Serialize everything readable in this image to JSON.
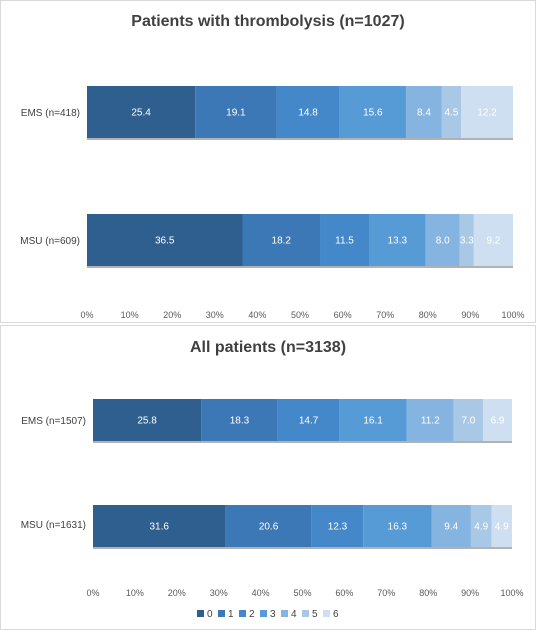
{
  "legend_labels": [
    "0",
    "1",
    "2",
    "3",
    "4",
    "5",
    "6"
  ],
  "colors": [
    "#2f5f8f",
    "#3b78b5",
    "#4588c9",
    "#569ad6",
    "#86b4e0",
    "#a8c8e6",
    "#cddff0"
  ],
  "label_colors": [
    "#ffffff",
    "#ffffff",
    "#ffffff",
    "#ffffff",
    "#ffffff",
    "#ffffff",
    "#ffffff"
  ],
  "chart_data": [
    {
      "type": "bar",
      "orientation": "horizontal",
      "stacked": "percent",
      "title": "Patients with thrombolysis  (n=1027)",
      "categories": [
        "EMS (n=418)",
        "MSU (n=609)"
      ],
      "series": [
        {
          "name": "0",
          "values": [
            25.4,
            36.5
          ]
        },
        {
          "name": "1",
          "values": [
            19.1,
            18.2
          ]
        },
        {
          "name": "2",
          "values": [
            14.8,
            11.5
          ]
        },
        {
          "name": "3",
          "values": [
            15.6,
            13.3
          ]
        },
        {
          "name": "4",
          "values": [
            8.4,
            8.0
          ]
        },
        {
          "name": "5",
          "values": [
            4.5,
            3.3
          ]
        },
        {
          "name": "6",
          "values": [
            12.2,
            9.2
          ]
        }
      ],
      "xlim": [
        0,
        100
      ],
      "xticks": [
        "0%",
        "10%",
        "20%",
        "30%",
        "40%",
        "50%",
        "60%",
        "70%",
        "80%",
        "90%",
        "100%"
      ],
      "grid": false
    },
    {
      "type": "bar",
      "orientation": "horizontal",
      "stacked": "percent",
      "title": "All patients  (n=3138)",
      "categories": [
        "EMS (n=1507)",
        "MSU (n=1631)"
      ],
      "series": [
        {
          "name": "0",
          "values": [
            25.8,
            31.6
          ]
        },
        {
          "name": "1",
          "values": [
            18.3,
            20.6
          ]
        },
        {
          "name": "2",
          "values": [
            14.7,
            12.3
          ]
        },
        {
          "name": "3",
          "values": [
            16.1,
            16.3
          ]
        },
        {
          "name": "4",
          "values": [
            11.2,
            9.4
          ]
        },
        {
          "name": "5",
          "values": [
            7.0,
            4.9
          ]
        },
        {
          "name": "6",
          "values": [
            6.9,
            4.9
          ]
        }
      ],
      "xlim": [
        0,
        100
      ],
      "xticks": [
        "0%",
        "10%",
        "20%",
        "30%",
        "40%",
        "50%",
        "60%",
        "70%",
        "80%",
        "90%",
        "100%"
      ],
      "grid": false,
      "legend": "bottom"
    }
  ]
}
